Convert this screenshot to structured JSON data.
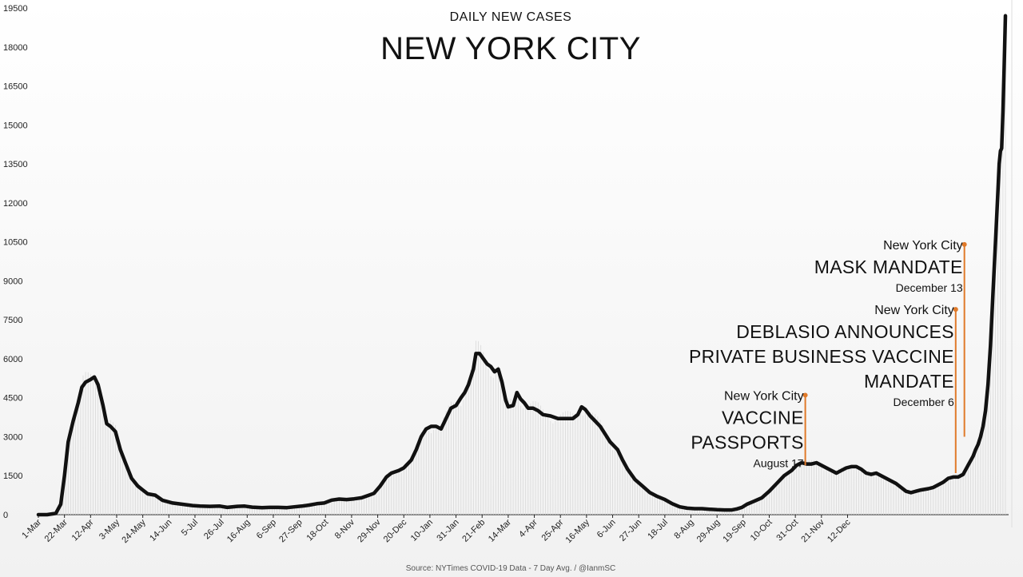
{
  "chart_data": {
    "type": "line",
    "subtitle": "DAILY NEW CASES",
    "title": "NEW YORK CITY",
    "source": "Source: NYTimes COVID-19 Data - 7 Day Avg. / @IanmSC",
    "ylim": [
      0,
      19500
    ],
    "yticks": [
      0,
      1500,
      3000,
      4500,
      6000,
      7500,
      9000,
      10500,
      12000,
      13500,
      15000,
      16500,
      18000,
      19500
    ],
    "x_tick_labels": [
      "1-Mar",
      "22-Mar",
      "12-Apr",
      "3-May",
      "24-May",
      "14-Jun",
      "5-Jul",
      "26-Jul",
      "16-Aug",
      "6-Sep",
      "27-Sep",
      "18-Oct",
      "8-Nov",
      "29-Nov",
      "20-Dec",
      "10-Jan",
      "31-Jan",
      "21-Feb",
      "14-Mar",
      "4-Apr",
      "25-Apr",
      "16-May",
      "6-Jun",
      "27-Jun",
      "18-Jul",
      "8-Aug",
      "29-Aug",
      "19-Sep",
      "10-Oct",
      "31-Oct",
      "21-Nov",
      "12-Dec"
    ],
    "x_tick_interval_days": 21,
    "x_unit": "days since 1-Mar (2020)",
    "series": [
      {
        "name": "7 Day Avg.",
        "points": [
          [
            0,
            0
          ],
          [
            7,
            0
          ],
          [
            14,
            50
          ],
          [
            18,
            400
          ],
          [
            21,
            1500
          ],
          [
            24,
            2800
          ],
          [
            28,
            3600
          ],
          [
            32,
            4300
          ],
          [
            35,
            4900
          ],
          [
            38,
            5100
          ],
          [
            42,
            5200
          ],
          [
            45,
            5300
          ],
          [
            48,
            5000
          ],
          [
            52,
            4200
          ],
          [
            55,
            3500
          ],
          [
            58,
            3400
          ],
          [
            62,
            3200
          ],
          [
            66,
            2500
          ],
          [
            70,
            2000
          ],
          [
            75,
            1400
          ],
          [
            80,
            1100
          ],
          [
            84,
            950
          ],
          [
            88,
            800
          ],
          [
            94,
            750
          ],
          [
            100,
            550
          ],
          [
            108,
            450
          ],
          [
            116,
            400
          ],
          [
            124,
            350
          ],
          [
            130,
            330
          ],
          [
            138,
            320
          ],
          [
            146,
            330
          ],
          [
            152,
            280
          ],
          [
            160,
            320
          ],
          [
            166,
            330
          ],
          [
            172,
            290
          ],
          [
            180,
            270
          ],
          [
            186,
            280
          ],
          [
            193,
            280
          ],
          [
            200,
            270
          ],
          [
            206,
            300
          ],
          [
            212,
            330
          ],
          [
            218,
            370
          ],
          [
            224,
            420
          ],
          [
            230,
            450
          ],
          [
            236,
            560
          ],
          [
            242,
            600
          ],
          [
            248,
            580
          ],
          [
            254,
            610
          ],
          [
            260,
            650
          ],
          [
            266,
            750
          ],
          [
            270,
            820
          ],
          [
            275,
            1100
          ],
          [
            280,
            1450
          ],
          [
            284,
            1600
          ],
          [
            290,
            1700
          ],
          [
            294,
            1800
          ],
          [
            300,
            2100
          ],
          [
            304,
            2500
          ],
          [
            308,
            3000
          ],
          [
            312,
            3300
          ],
          [
            316,
            3400
          ],
          [
            320,
            3400
          ],
          [
            324,
            3300
          ],
          [
            328,
            3700
          ],
          [
            332,
            4100
          ],
          [
            336,
            4200
          ],
          [
            340,
            4500
          ],
          [
            343,
            4700
          ],
          [
            346,
            5000
          ],
          [
            350,
            5600
          ],
          [
            352,
            6200
          ],
          [
            355,
            6200
          ],
          [
            358,
            6000
          ],
          [
            361,
            5800
          ],
          [
            364,
            5700
          ],
          [
            367,
            5500
          ],
          [
            370,
            5600
          ],
          [
            373,
            5100
          ],
          [
            376,
            4400
          ],
          [
            378,
            4150
          ],
          [
            382,
            4200
          ],
          [
            385,
            4700
          ],
          [
            388,
            4450
          ],
          [
            391,
            4300
          ],
          [
            394,
            4100
          ],
          [
            398,
            4100
          ],
          [
            402,
            4000
          ],
          [
            406,
            3850
          ],
          [
            412,
            3800
          ],
          [
            418,
            3700
          ],
          [
            424,
            3700
          ],
          [
            430,
            3700
          ],
          [
            434,
            3850
          ],
          [
            437,
            4150
          ],
          [
            440,
            4050
          ],
          [
            444,
            3800
          ],
          [
            448,
            3600
          ],
          [
            452,
            3400
          ],
          [
            456,
            3100
          ],
          [
            460,
            2800
          ],
          [
            466,
            2500
          ],
          [
            470,
            2100
          ],
          [
            474,
            1750
          ],
          [
            480,
            1350
          ],
          [
            486,
            1100
          ],
          [
            492,
            850
          ],
          [
            498,
            700
          ],
          [
            504,
            580
          ],
          [
            510,
            420
          ],
          [
            516,
            300
          ],
          [
            522,
            250
          ],
          [
            528,
            230
          ],
          [
            534,
            230
          ],
          [
            540,
            210
          ],
          [
            546,
            190
          ],
          [
            552,
            180
          ],
          [
            558,
            180
          ],
          [
            562,
            220
          ],
          [
            566,
            280
          ],
          [
            570,
            400
          ],
          [
            576,
            520
          ],
          [
            582,
            650
          ],
          [
            588,
            900
          ],
          [
            594,
            1200
          ],
          [
            600,
            1500
          ],
          [
            606,
            1700
          ],
          [
            610,
            1900
          ],
          [
            614,
            2000
          ],
          [
            618,
            1950
          ],
          [
            622,
            1950
          ],
          [
            626,
            2000
          ],
          [
            630,
            1900
          ],
          [
            634,
            1800
          ],
          [
            638,
            1700
          ],
          [
            642,
            1600
          ],
          [
            646,
            1700
          ],
          [
            650,
            1800
          ],
          [
            654,
            1850
          ],
          [
            658,
            1850
          ],
          [
            662,
            1750
          ],
          [
            666,
            1600
          ],
          [
            670,
            1550
          ],
          [
            674,
            1600
          ],
          [
            678,
            1500
          ],
          [
            682,
            1400
          ],
          [
            686,
            1300
          ],
          [
            690,
            1200
          ],
          [
            694,
            1050
          ],
          [
            698,
            900
          ],
          [
            702,
            850
          ],
          [
            706,
            900
          ],
          [
            710,
            950
          ],
          [
            716,
            1000
          ],
          [
            720,
            1050
          ],
          [
            724,
            1150
          ],
          [
            728,
            1250
          ],
          [
            732,
            1400
          ],
          [
            736,
            1450
          ],
          [
            740,
            1450
          ],
          [
            744,
            1550
          ],
          [
            748,
            1900
          ],
          [
            752,
            2250
          ],
          [
            754,
            2500
          ],
          [
            756,
            2700
          ],
          [
            758,
            3000
          ],
          [
            760,
            3400
          ],
          [
            762,
            4000
          ],
          [
            764,
            5000
          ],
          [
            766,
            6500
          ],
          [
            768,
            8500
          ],
          [
            770,
            10500
          ],
          [
            772,
            12500
          ],
          [
            773,
            13500
          ],
          [
            774,
            14000
          ],
          [
            775,
            14100
          ],
          [
            776,
            15500
          ],
          [
            777,
            17200
          ],
          [
            778,
            19200
          ]
        ]
      }
    ],
    "annotations": [
      {
        "lines_small": "New York City",
        "lines_big": [
          "VACCINE",
          "PASSPORTS"
        ],
        "date": "August 17",
        "color": "#e07a2a",
        "x_day": 617,
        "y_top": 4600,
        "y_bottom": 1900
      },
      {
        "lines_small": "New York City",
        "lines_big": [
          "DEBLASIO ANNOUNCES",
          "PRIVATE BUSINESS VACCINE",
          "MANDATE"
        ],
        "date": "December 6",
        "color": "#e07a2a",
        "x_day": 738,
        "y_top": 7900,
        "y_bottom": 1600
      },
      {
        "lines_small": "New York City",
        "lines_big": [
          "MASK MANDATE"
        ],
        "date": "December 13",
        "color": "#e07a2a",
        "x_day": 745,
        "y_top": 10400,
        "y_bottom": 3000
      }
    ],
    "grid": false,
    "legend": "none",
    "line_color": "#111111",
    "background_gradient": [
      "#ffffff",
      "#f2f2f2"
    ]
  }
}
